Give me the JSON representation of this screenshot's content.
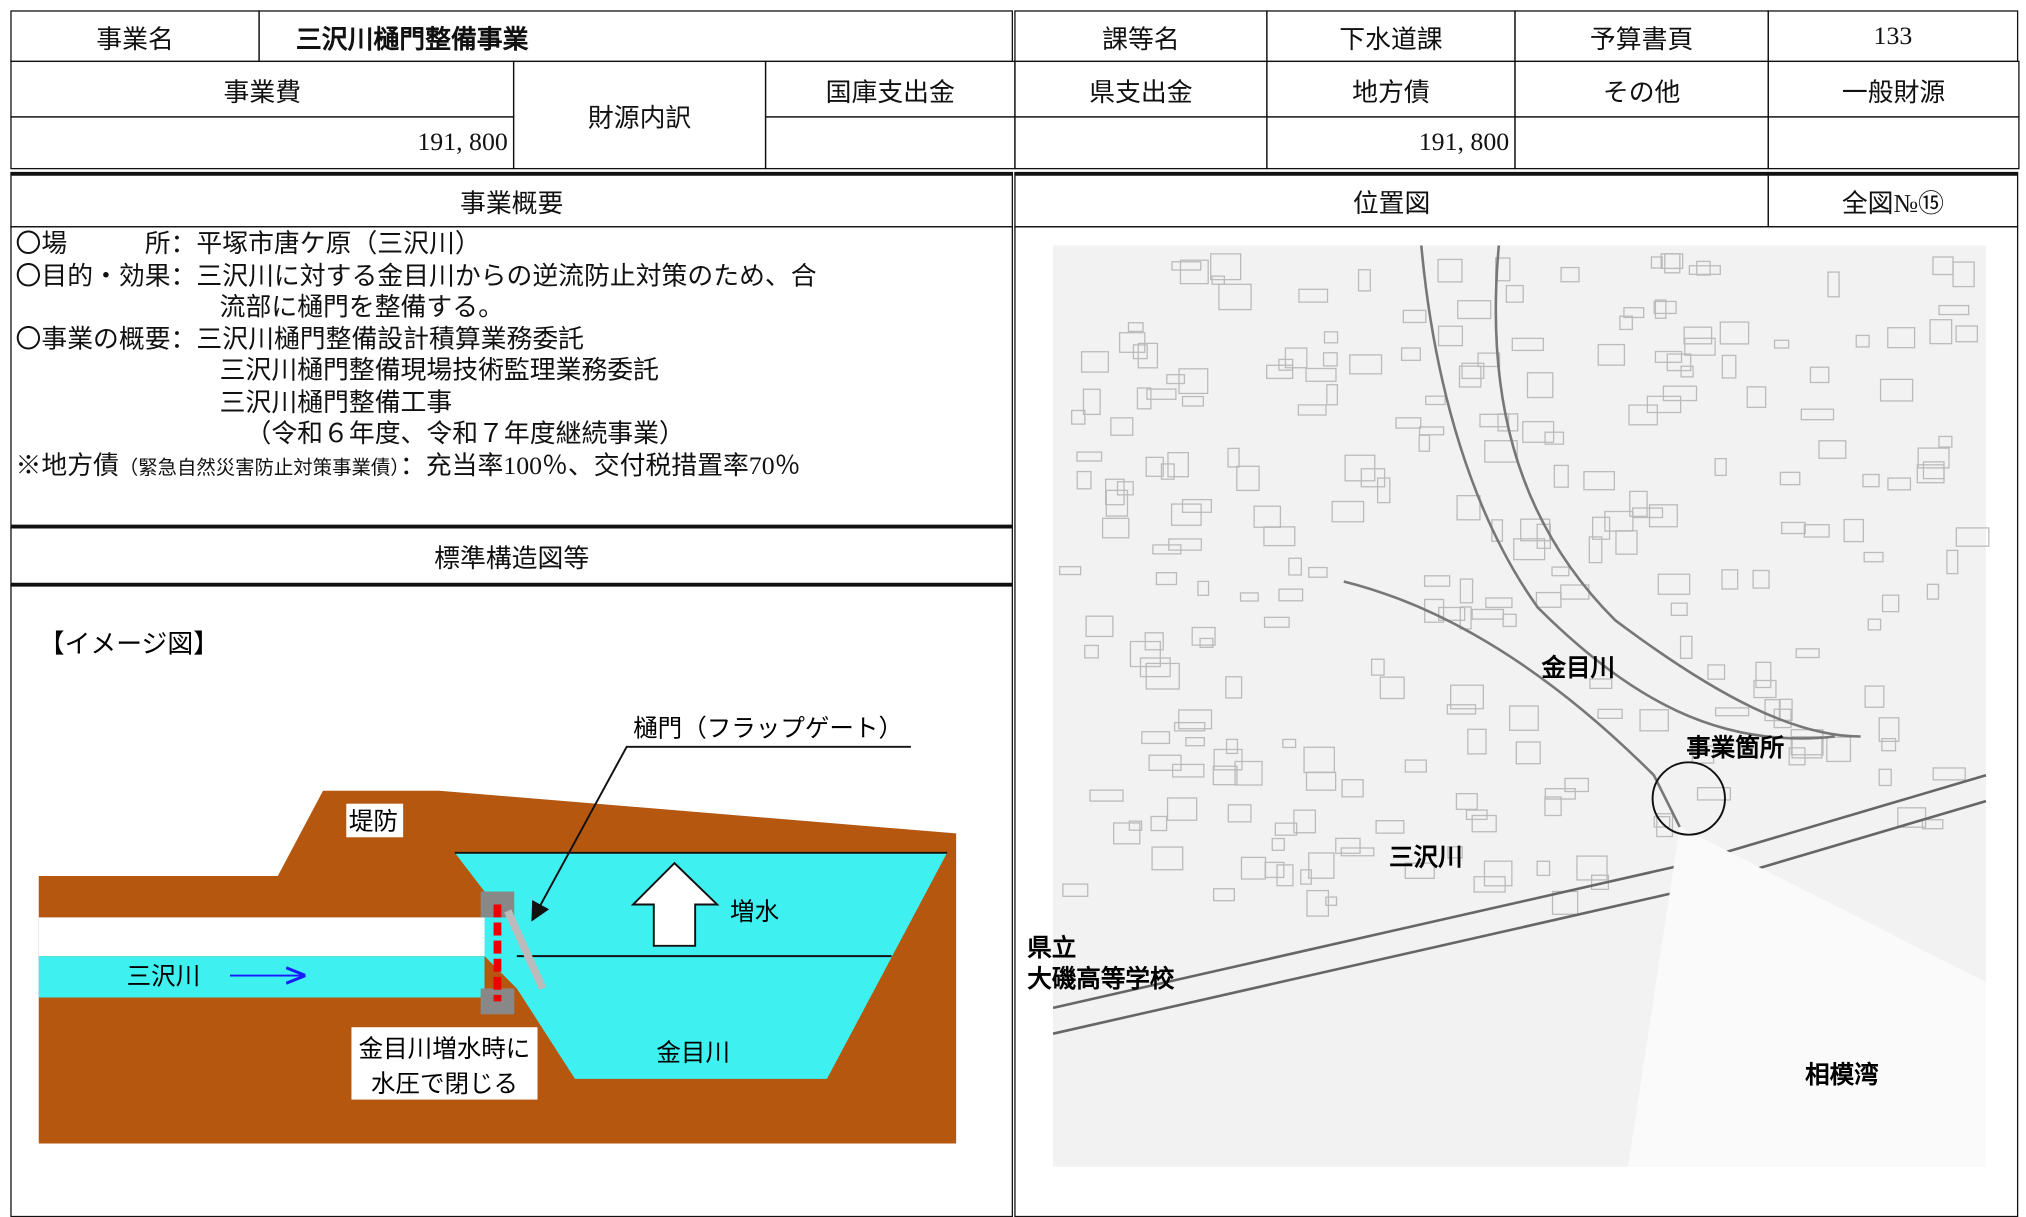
{
  "header": {
    "project_label": "事業名",
    "project_name": "三沢川樋門整備事業",
    "dept_label": "課等名",
    "dept": "下水道課",
    "budget_page_label": "予算書頁",
    "budget_page": "133"
  },
  "funding": {
    "cost_label": "事業費",
    "cost": "191, 800",
    "breakdown_label": "財源内訳",
    "columns": [
      {
        "label": "国庫支出金"
      },
      {
        "label": "県支出金"
      },
      {
        "label": "地方債",
        "value": "191, 800"
      },
      {
        "label": "その他"
      },
      {
        "label": "一般財源"
      }
    ]
  },
  "overview": {
    "title": "事業概要",
    "lines": [
      "〇場　　　所：平塚市唐ケ原（三沢川）",
      "〇目的・効果：三沢川に対する金目川からの逆流防止対策のため、合",
      "流部に樋門を整備する。",
      "〇事業の概要：三沢川樋門整備設計積算業務委託",
      "三沢川樋門整備現場技術監理業務委託",
      "三沢川樋門整備工事",
      "（令和６年度、令和７年度継続事業）"
    ],
    "note": {
      "prefix": "※地方債",
      "small": "（緊急自然災害防止対策事業債）",
      "suffix": "：充当率100％、交付税措置率70％"
    }
  },
  "location": {
    "title": "位置図",
    "map_number": "全図№⑮",
    "labels": {
      "river": "金目川",
      "site": "事業箇所",
      "creek": "三沢川",
      "school_1": "県立",
      "school_2": "大磯高等学校",
      "bay": "相模湾"
    }
  },
  "structure": {
    "title": "標準構造図等",
    "caption": "【イメージ図】",
    "labels": {
      "levee": "堤防",
      "rise": "増水",
      "creek": "三沢川",
      "river": "金目川",
      "gate": "樋門（フラップゲート）",
      "note_1": "金目川増水時に",
      "note_2": "水圧で閉じる"
    }
  }
}
